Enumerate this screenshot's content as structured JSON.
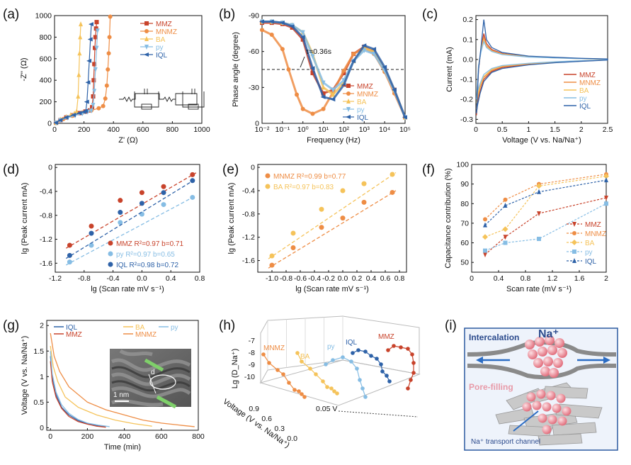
{
  "colors": {
    "MMZ": "#c8432b",
    "MNMZ": "#ee8d45",
    "BA": "#f5c35a",
    "py": "#86bde4",
    "IQL": "#2e62a8"
  },
  "panels": {
    "a": {
      "label": "(a)"
    },
    "b": {
      "label": "(b)",
      "annotation": "τ=0.36s"
    },
    "c": {
      "label": "(c)"
    },
    "d": {
      "label": "(d)"
    },
    "e": {
      "label": "(e)"
    },
    "f": {
      "label": "(f)"
    },
    "g": {
      "label": "(g)",
      "inset_scale": "1 nm",
      "inset_mark": "d"
    },
    "h": {
      "label": "(h)",
      "annotation": "0.05 V"
    },
    "i": {
      "label": "(i)",
      "intercalation": "Intercalation",
      "ion": "Na⁺",
      "pore": "Pore-filling",
      "channel": "Na⁺ transport channel"
    }
  },
  "chart_data": [
    {
      "panel": "a",
      "type": "line",
      "xlabel": "Z' (Ω)",
      "ylabel": "-Z'' (Ω)",
      "xlim": [
        0,
        1000
      ],
      "ylim": [
        0,
        1000
      ],
      "xticks": [
        "0",
        "200",
        "400",
        "600",
        "800",
        "1000"
      ],
      "yticks": [
        "0",
        "200",
        "400",
        "600",
        "800",
        "1000"
      ],
      "series": [
        {
          "name": "MMZ",
          "x": [
            10,
            40,
            80,
            120,
            170,
            210,
            240,
            255,
            262,
            266,
            270,
            274,
            278,
            282,
            286
          ],
          "y": [
            5,
            30,
            55,
            75,
            95,
            110,
            120,
            150,
            250,
            400,
            550,
            700,
            800,
            880,
            940
          ]
        },
        {
          "name": "MNMZ",
          "x": [
            10,
            60,
            120,
            190,
            250,
            300,
            330,
            345,
            355,
            362,
            368,
            373,
            378
          ],
          "y": [
            5,
            40,
            70,
            100,
            120,
            140,
            160,
            230,
            350,
            500,
            650,
            800,
            990
          ]
        },
        {
          "name": "BA",
          "x": [
            10,
            40,
            80,
            110,
            135,
            150,
            160,
            165,
            170,
            174,
            178
          ],
          "y": [
            5,
            35,
            60,
            78,
            92,
            110,
            250,
            450,
            650,
            800,
            920
          ]
        },
        {
          "name": "py",
          "x": [
            10,
            40,
            90,
            140,
            190,
            225,
            250,
            262,
            270,
            278,
            286,
            292
          ],
          "y": [
            5,
            28,
            52,
            72,
            92,
            108,
            118,
            170,
            300,
            500,
            700,
            860
          ]
        },
        {
          "name": "IQL",
          "x": [
            10,
            40,
            80,
            130,
            170,
            200,
            212,
            220,
            228,
            236,
            244,
            250
          ],
          "y": [
            5,
            30,
            55,
            78,
            95,
            105,
            115,
            200,
            380,
            580,
            780,
            920
          ]
        }
      ]
    },
    {
      "panel": "b",
      "type": "line",
      "xlabel": "Frequency (Hz)",
      "ylabel": "Phase angle (degree)",
      "xscale": "log",
      "xlim": [
        0.01,
        100000
      ],
      "ylim": [
        -90,
        0
      ],
      "xticks": [
        "10⁻²",
        "10⁻¹",
        "10⁰",
        "10¹",
        "10²",
        "10³",
        "10⁴",
        "10⁵"
      ],
      "yticks": [
        "-90",
        "-60",
        "-30",
        "0"
      ],
      "series": [
        {
          "name": "MMZ",
          "x": [
            0.01,
            0.03,
            0.1,
            0.3,
            1,
            3,
            10,
            30,
            100,
            300,
            1000,
            3000,
            10000,
            30000,
            100000
          ],
          "y": [
            -84,
            -84,
            -83,
            -80,
            -70,
            -42,
            -25,
            -28,
            -42,
            -58,
            -64,
            -60,
            -45,
            -28,
            -5
          ]
        },
        {
          "name": "MNMZ",
          "x": [
            0.01,
            0.03,
            0.1,
            0.2,
            0.5,
            1,
            3,
            10,
            30,
            100,
            300,
            1000,
            3000,
            10000,
            30000,
            100000
          ],
          "y": [
            -78,
            -74,
            -62,
            -45,
            -24,
            -12,
            -8,
            -12,
            -26,
            -44,
            -58,
            -63,
            -58,
            -43,
            -25,
            -5
          ]
        },
        {
          "name": "BA",
          "x": [
            0.01,
            0.03,
            0.1,
            0.3,
            1,
            3,
            10,
            30,
            100,
            300,
            1000,
            3000,
            10000,
            30000,
            100000
          ],
          "y": [
            -85,
            -85,
            -84,
            -82,
            -76,
            -58,
            -30,
            -24,
            -34,
            -52,
            -63,
            -60,
            -45,
            -28,
            -5
          ]
        },
        {
          "name": "py",
          "x": [
            0.01,
            0.03,
            0.1,
            0.3,
            1,
            3,
            10,
            30,
            100,
            300,
            1000,
            3000,
            10000,
            30000,
            100000
          ],
          "y": [
            -85,
            -85,
            -84,
            -82,
            -76,
            -56,
            -34,
            -28,
            -36,
            -52,
            -61,
            -58,
            -44,
            -27,
            -5
          ]
        },
        {
          "name": "IQL",
          "x": [
            0.01,
            0.03,
            0.1,
            0.3,
            1,
            3,
            10,
            30,
            100,
            300,
            1000,
            3000,
            10000,
            30000,
            100000
          ],
          "y": [
            -85,
            -85,
            -84,
            -81,
            -72,
            -46,
            -22,
            -20,
            -32,
            -52,
            -65,
            -62,
            -47,
            -28,
            -5
          ]
        }
      ],
      "reference_y": -45
    },
    {
      "panel": "c",
      "type": "line",
      "xlabel": "Voltage (V vs. Na/Na⁺)",
      "ylabel": "Current (mA)",
      "xlim": [
        0,
        2.5
      ],
      "ylim": [
        -0.32,
        0.22
      ],
      "xticks": [
        "0",
        "0.5",
        "1",
        "1.5",
        "2",
        "2.5"
      ],
      "yticks": [
        "-0.3",
        "-0.2",
        "-0.1",
        "0.0",
        "0.1",
        "0.2"
      ],
      "series": [
        {
          "name": "MMZ",
          "x": [
            0.01,
            0.05,
            0.1,
            0.15,
            0.2,
            0.3,
            0.5,
            1,
            1.5,
            2,
            2.5,
            2.5,
            2,
            1.5,
            1,
            0.5,
            0.3,
            0.15,
            0.08,
            0.03,
            0.01
          ],
          "y": [
            -0.28,
            -0.05,
            0.06,
            0.13,
            0.08,
            0.05,
            0.03,
            0.015,
            0.01,
            0.005,
            0.002,
            -0.002,
            -0.008,
            -0.015,
            -0.025,
            -0.04,
            -0.06,
            -0.1,
            -0.16,
            -0.22,
            -0.28
          ]
        },
        {
          "name": "MNMZ",
          "x": [
            0.01,
            0.05,
            0.1,
            0.15,
            0.2,
            0.3,
            0.5,
            1,
            1.5,
            2,
            2.5,
            2.5,
            2,
            1.5,
            1,
            0.5,
            0.3,
            0.15,
            0.08,
            0.03,
            0.01
          ],
          "y": [
            -0.25,
            -0.04,
            0.05,
            0.11,
            0.07,
            0.045,
            0.028,
            0.014,
            0.009,
            0.004,
            0.002,
            -0.002,
            -0.007,
            -0.013,
            -0.022,
            -0.036,
            -0.055,
            -0.09,
            -0.14,
            -0.2,
            -0.25
          ]
        },
        {
          "name": "BA",
          "x": [
            0.01,
            0.05,
            0.1,
            0.15,
            0.2,
            0.3,
            0.5,
            1,
            1.5,
            2,
            2.5,
            2.5,
            2,
            1.5,
            1,
            0.5,
            0.3,
            0.15,
            0.08,
            0.03,
            0.01
          ],
          "y": [
            -0.22,
            -0.03,
            0.05,
            0.1,
            0.065,
            0.042,
            0.026,
            0.013,
            0.008,
            0.004,
            0.002,
            -0.002,
            -0.006,
            -0.012,
            -0.02,
            -0.033,
            -0.05,
            -0.085,
            -0.13,
            -0.18,
            -0.22
          ]
        },
        {
          "name": "py",
          "x": [
            0.01,
            0.05,
            0.1,
            0.15,
            0.2,
            0.3,
            0.5,
            1,
            1.5,
            2,
            2.5,
            2.5,
            2,
            1.5,
            1,
            0.5,
            0.3,
            0.15,
            0.08,
            0.03,
            0.01
          ],
          "y": [
            -0.2,
            -0.03,
            0.04,
            0.09,
            0.06,
            0.04,
            0.024,
            0.012,
            0.008,
            0.004,
            0.002,
            -0.002,
            -0.006,
            -0.011,
            -0.019,
            -0.03,
            -0.045,
            -0.075,
            -0.12,
            -0.16,
            -0.2
          ]
        },
        {
          "name": "IQL",
          "x": [
            0.01,
            0.05,
            0.1,
            0.15,
            0.2,
            0.3,
            0.5,
            1,
            1.5,
            2,
            2.5,
            2.5,
            2,
            1.5,
            1,
            0.5,
            0.3,
            0.15,
            0.08,
            0.03,
            0.01
          ],
          "y": [
            -0.27,
            -0.05,
            0.07,
            0.2,
            0.1,
            0.06,
            0.035,
            0.017,
            0.011,
            0.006,
            0.003,
            -0.003,
            -0.009,
            -0.016,
            -0.027,
            -0.045,
            -0.065,
            -0.11,
            -0.17,
            -0.23,
            -0.27
          ]
        }
      ]
    },
    {
      "panel": "d",
      "type": "scatter",
      "xlabel": "lg (Scan rate mV s⁻¹)",
      "ylabel": "lg (Peak current mA)",
      "xlim": [
        -1.2,
        0.8
      ],
      "ylim": [
        -1.75,
        0.05
      ],
      "xticks": [
        "-1.2",
        "-0.8",
        "-0.4",
        "0.0",
        "0.4",
        "0.8"
      ],
      "yticks": [
        "-1.6",
        "-1.2",
        "-0.8",
        "-0.4",
        "0"
      ],
      "series": [
        {
          "name": "MMZ",
          "label": "MMZ R²=0.97 b=0.71",
          "x": [
            -1.0,
            -0.7,
            -0.3,
            0.0,
            0.3,
            0.7
          ],
          "y": [
            -1.3,
            -0.98,
            -0.55,
            -0.42,
            -0.32,
            -0.12
          ]
        },
        {
          "name": "py",
          "label": "py R²=0.97 b=0.65",
          "x": [
            -1.0,
            -0.7,
            -0.3,
            0.0,
            0.3,
            0.7
          ],
          "y": [
            -1.58,
            -1.3,
            -0.92,
            -0.78,
            -0.62,
            -0.5
          ]
        },
        {
          "name": "IQL",
          "label": "IQL R²=0.98 b=0.72",
          "x": [
            -1.0,
            -0.7,
            -0.3,
            0.0,
            0.3,
            0.7
          ],
          "y": [
            -1.47,
            -1.1,
            -0.75,
            -0.6,
            -0.42,
            -0.22
          ]
        }
      ]
    },
    {
      "panel": "e",
      "type": "scatter",
      "xlabel": "lg (Scan rate mV s⁻¹)",
      "ylabel": "lg (Peak current mA)",
      "xlim": [
        -1.2,
        0.9
      ],
      "ylim": [
        -1.8,
        0.05
      ],
      "xticks": [
        "-1.0",
        "-0.8",
        "-0.6",
        "-0.4",
        "-0.2",
        "0.0",
        "0.2",
        "0.4",
        "0.6",
        "0.8"
      ],
      "yticks": [
        "-1.6",
        "-1.2",
        "-0.8",
        "-0.4",
        "0"
      ],
      "series": [
        {
          "name": "MNMZ",
          "label": "MNMZ  R²=0.99 b=0.77",
          "x": [
            -1.0,
            -0.7,
            -0.3,
            0.0,
            0.3,
            0.7
          ],
          "y": [
            -1.68,
            -1.38,
            -1.03,
            -0.87,
            -0.6,
            -0.43
          ]
        },
        {
          "name": "BA",
          "label": "BA R²=0.97 b=0.83",
          "x": [
            -1.0,
            -0.7,
            -0.3,
            0.0,
            0.3,
            0.7
          ],
          "y": [
            -1.52,
            -1.13,
            -0.72,
            -0.4,
            -0.28,
            -0.12
          ]
        }
      ]
    },
    {
      "panel": "f",
      "type": "line",
      "xlabel": "Scan rate (mV s⁻¹)",
      "ylabel": "Capacitance contribution (%)",
      "xlim": [
        0,
        2
      ],
      "ylim": [
        45,
        100
      ],
      "xticks": [
        "0",
        "0.4",
        "0.8",
        "1.2",
        "1.6",
        "2"
      ],
      "yticks": [
        "50",
        "60",
        "70",
        "80",
        "90",
        "100"
      ],
      "series": [
        {
          "name": "MMZ",
          "x": [
            0.2,
            0.5,
            1,
            2
          ],
          "y": [
            54,
            63,
            75,
            83
          ]
        },
        {
          "name": "MNMZ",
          "x": [
            0.2,
            0.5,
            1,
            2
          ],
          "y": [
            72,
            82,
            90,
            95
          ]
        },
        {
          "name": "BA",
          "x": [
            0.2,
            0.5,
            1,
            2
          ],
          "y": [
            63,
            67,
            89,
            94
          ]
        },
        {
          "name": "py",
          "x": [
            0.2,
            0.5,
            1,
            2
          ],
          "y": [
            56,
            60,
            62,
            80
          ]
        },
        {
          "name": "IQL",
          "x": [
            0.2,
            0.5,
            1,
            2
          ],
          "y": [
            69,
            79,
            86,
            92
          ]
        }
      ]
    },
    {
      "panel": "g",
      "type": "line",
      "xlabel": "Time (min)",
      "ylabel": "Voltage (V vs. Na/Na⁺)",
      "xlim": [
        -20,
        800
      ],
      "ylim": [
        -0.05,
        2.1
      ],
      "xticks": [
        "0",
        "200",
        "400",
        "600",
        "800"
      ],
      "yticks": [
        "0",
        "0.5",
        "1",
        "1.5",
        "2"
      ],
      "series": [
        {
          "name": "IQL",
          "x": [
            0,
            10,
            30,
            60,
            100,
            150,
            200,
            250,
            300
          ],
          "y": [
            1.4,
            1.0,
            0.65,
            0.4,
            0.25,
            0.14,
            0.08,
            0.04,
            0.02
          ]
        },
        {
          "name": "MMZ",
          "x": [
            0,
            10,
            30,
            60,
            100,
            150,
            200,
            250,
            300
          ],
          "y": [
            1.3,
            0.9,
            0.6,
            0.38,
            0.22,
            0.12,
            0.07,
            0.03,
            0.01
          ]
        },
        {
          "name": "BA",
          "x": [
            0,
            15,
            40,
            80,
            150,
            250,
            350,
            450,
            550
          ],
          "y": [
            1.6,
            1.2,
            0.9,
            0.6,
            0.4,
            0.25,
            0.15,
            0.08,
            0.03
          ]
        },
        {
          "name": "MNMZ",
          "x": [
            0,
            20,
            50,
            100,
            200,
            300,
            400,
            500,
            600,
            700,
            780
          ],
          "y": [
            1.85,
            1.4,
            1.1,
            0.8,
            0.5,
            0.35,
            0.25,
            0.15,
            0.09,
            0.05,
            0.02
          ]
        },
        {
          "name": "py",
          "x": [
            0,
            10,
            30,
            60,
            100,
            150,
            200,
            260,
            320
          ],
          "y": [
            1.5,
            1.05,
            0.7,
            0.45,
            0.28,
            0.16,
            0.09,
            0.05,
            0.02
          ]
        }
      ]
    },
    {
      "panel": "h",
      "type": "line",
      "xlabel": "Voltage (V vs. Na/Na⁺)",
      "ylabel": "Lg (D_Na⁺)",
      "yticks": [
        "-7",
        "-8",
        "-9",
        "-10"
      ],
      "xticks": [
        "0.0",
        "0.3",
        "0.6",
        "0.9"
      ],
      "series": [
        {
          "name": "MNMZ"
        },
        {
          "name": "BA"
        },
        {
          "name": "py"
        },
        {
          "name": "IQL"
        },
        {
          "name": "MMZ"
        }
      ]
    }
  ]
}
